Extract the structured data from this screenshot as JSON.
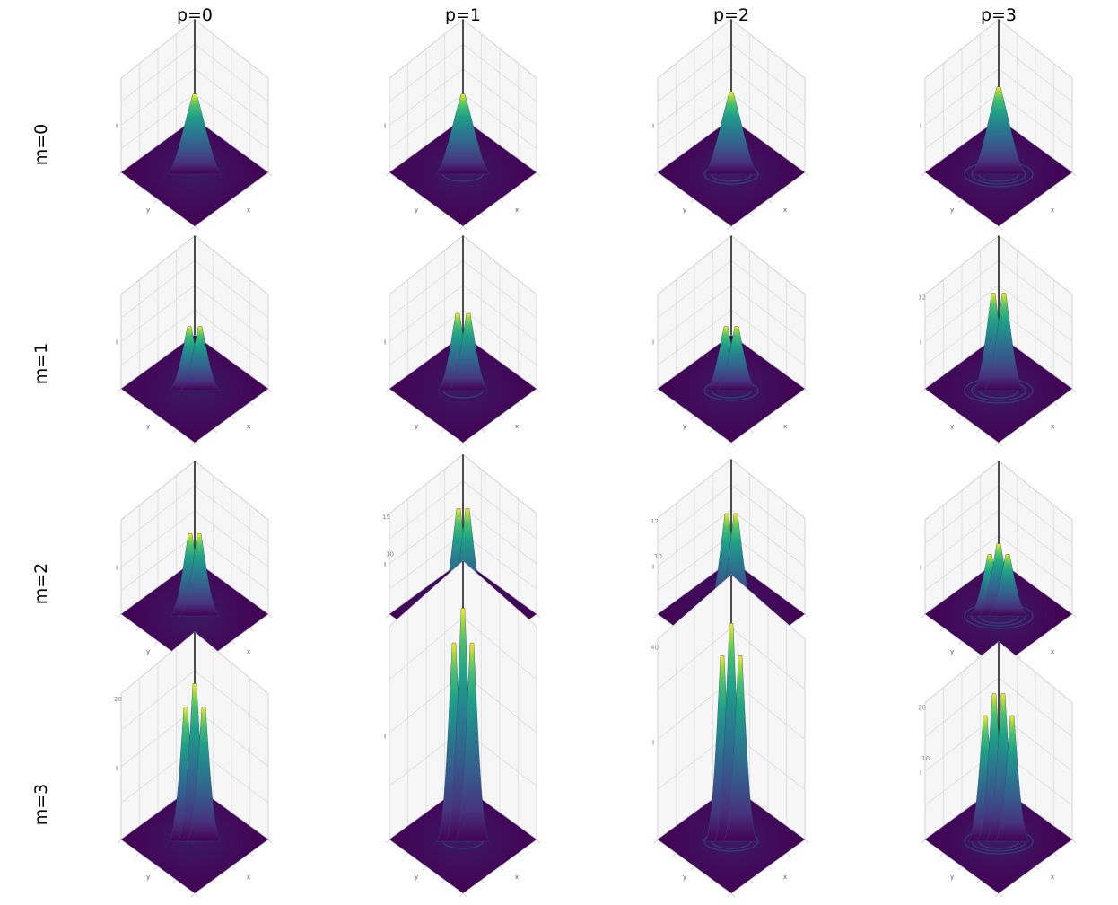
{
  "figure": {
    "column_titles": [
      "p=0",
      "p=1",
      "p=2",
      "p=3"
    ],
    "row_titles": [
      "m=0",
      "m=1",
      "m=2",
      "m=3"
    ]
  },
  "chart_data": [
    {
      "type": "surface",
      "row": 0,
      "col": 0,
      "m": 0,
      "p": 0,
      "colormap": "viridis",
      "xlabel": "x",
      "ylabel": "y",
      "zlabel": "I",
      "peaks": 1,
      "height": 0.78,
      "rings": 0
    },
    {
      "type": "surface",
      "row": 0,
      "col": 1,
      "m": 0,
      "p": 1,
      "colormap": "viridis",
      "xlabel": "x",
      "ylabel": "y",
      "zlabel": "I",
      "peaks": 1,
      "height": 0.78,
      "rings": 1
    },
    {
      "type": "surface",
      "row": 0,
      "col": 2,
      "m": 0,
      "p": 2,
      "colormap": "viridis",
      "xlabel": "x",
      "ylabel": "y",
      "zlabel": "I",
      "peaks": 1,
      "height": 0.8,
      "rings": 2
    },
    {
      "type": "surface",
      "row": 0,
      "col": 3,
      "m": 0,
      "p": 3,
      "colormap": "viridis",
      "xlabel": "x",
      "ylabel": "y",
      "zlabel": "I",
      "peaks": 1,
      "height": 0.85,
      "rings": 3
    },
    {
      "type": "surface",
      "row": 1,
      "col": 0,
      "m": 1,
      "p": 0,
      "colormap": "viridis",
      "xlabel": "x",
      "ylabel": "y",
      "zlabel": "I",
      "peaks": 2,
      "height": 0.62,
      "rings": 0
    },
    {
      "type": "surface",
      "row": 1,
      "col": 1,
      "m": 1,
      "p": 1,
      "colormap": "viridis",
      "xlabel": "x",
      "ylabel": "y",
      "zlabel": "I",
      "peaks": 2,
      "height": 0.75,
      "rings": 1
    },
    {
      "type": "surface",
      "row": 1,
      "col": 2,
      "m": 1,
      "p": 2,
      "colormap": "viridis",
      "xlabel": "x",
      "ylabel": "y",
      "zlabel": "I",
      "peaks": 2,
      "height": 0.62,
      "rings": 2
    },
    {
      "type": "surface",
      "row": 1,
      "col": 3,
      "m": 1,
      "p": 3,
      "colormap": "viridis",
      "xlabel": "x",
      "ylabel": "y",
      "zlabel": "I",
      "peaks": 2,
      "height": 0.95,
      "rings": 3,
      "z_tick_top": "12"
    },
    {
      "type": "surface",
      "row": 2,
      "col": 0,
      "m": 2,
      "p": 0,
      "colormap": "viridis",
      "xlabel": "x",
      "ylabel": "y",
      "zlabel": "I",
      "peaks": 2,
      "height": 0.8,
      "rings": 0
    },
    {
      "type": "surface",
      "row": 2,
      "col": 1,
      "m": 2,
      "p": 1,
      "colormap": "viridis",
      "xlabel": "x",
      "ylabel": "y",
      "zlabel": "I",
      "peaks": 2,
      "height": 1.05,
      "rings": 1,
      "z_tick_top": "15",
      "z_tick_mid": "10"
    },
    {
      "type": "surface",
      "row": 2,
      "col": 2,
      "m": 2,
      "p": 2,
      "colormap": "viridis",
      "xlabel": "x",
      "ylabel": "y",
      "zlabel": "I",
      "peaks": 2,
      "height": 1.0,
      "rings": 2,
      "z_tick_top": "12",
      "z_tick_mid": "10"
    },
    {
      "type": "surface",
      "row": 2,
      "col": 3,
      "m": 2,
      "p": 3,
      "colormap": "viridis",
      "xlabel": "x",
      "ylabel": "y",
      "zlabel": "I",
      "peaks": 3,
      "height": 0.7,
      "rings": 3
    },
    {
      "type": "surface",
      "row": 3,
      "col": 0,
      "m": 3,
      "p": 0,
      "colormap": "viridis",
      "xlabel": "x",
      "ylabel": "y",
      "zlabel": "I",
      "peaks": 3,
      "height": 1.55,
      "rings": 0,
      "z_tick_top": "20"
    },
    {
      "type": "surface",
      "row": 3,
      "col": 1,
      "m": 3,
      "p": 1,
      "colormap": "viridis",
      "xlabel": "x",
      "ylabel": "y",
      "zlabel": "I",
      "peaks": 3,
      "height": 2.3,
      "rings": 1
    },
    {
      "type": "surface",
      "row": 3,
      "col": 2,
      "m": 3,
      "p": 2,
      "colormap": "viridis",
      "xlabel": "x",
      "ylabel": "y",
      "zlabel": "I",
      "peaks": 3,
      "height": 2.15,
      "rings": 2,
      "z_tick_top": "40"
    },
    {
      "type": "surface",
      "row": 3,
      "col": 3,
      "m": 3,
      "p": 3,
      "colormap": "viridis",
      "xlabel": "x",
      "ylabel": "y",
      "zlabel": "I",
      "peaks": 4,
      "height": 1.45,
      "rings": 3,
      "z_tick_top": "20",
      "z_tick_mid": "10"
    }
  ]
}
